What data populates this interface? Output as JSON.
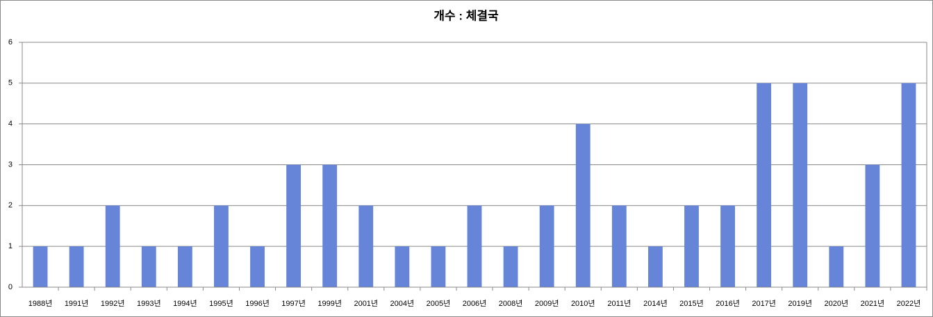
{
  "chart_data": {
    "type": "bar",
    "title": "개수 : 체결국",
    "categories": [
      "1988년",
      "1991년",
      "1992년",
      "1993년",
      "1994년",
      "1995년",
      "1996년",
      "1997년",
      "1999년",
      "2001년",
      "2004년",
      "2005년",
      "2006년",
      "2008년",
      "2009년",
      "2010년",
      "2011년",
      "2014년",
      "2015년",
      "2016년",
      "2017년",
      "2019년",
      "2020년",
      "2021년",
      "2022년"
    ],
    "values": [
      1,
      1,
      2,
      1,
      1,
      2,
      1,
      3,
      3,
      2,
      1,
      1,
      2,
      1,
      2,
      4,
      2,
      1,
      2,
      2,
      5,
      5,
      1,
      3,
      5
    ],
    "color": "#6685d9",
    "ylim": [
      0,
      6
    ],
    "yticks": [
      0,
      1,
      2,
      3,
      4,
      5,
      6
    ],
    "grid": true
  }
}
